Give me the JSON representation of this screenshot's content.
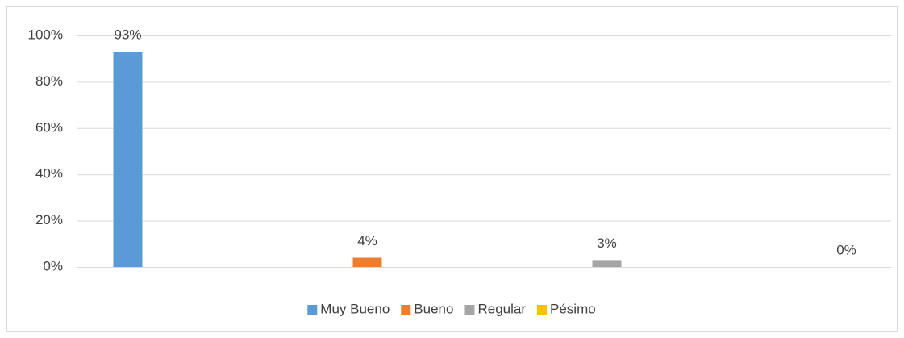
{
  "chart_data": {
    "type": "bar",
    "categories": [
      "Muy Bueno",
      "Bueno",
      "Regular",
      "Pésimo"
    ],
    "values": [
      93,
      4,
      3,
      0
    ],
    "value_labels": [
      "93%",
      "4%",
      "3%",
      "0%"
    ],
    "colors": [
      "#5b9bd5",
      "#ed7d31",
      "#a5a5a5",
      "#ffc000"
    ],
    "ylim": [
      0,
      100
    ],
    "yticks": [
      {
        "value": 0,
        "label": "0%"
      },
      {
        "value": 20,
        "label": "20%"
      },
      {
        "value": 40,
        "label": "40%"
      },
      {
        "value": 60,
        "label": "60%"
      },
      {
        "value": 80,
        "label": "80%"
      },
      {
        "value": 100,
        "label": "100%"
      }
    ],
    "grid": true,
    "legend": "bottom"
  }
}
